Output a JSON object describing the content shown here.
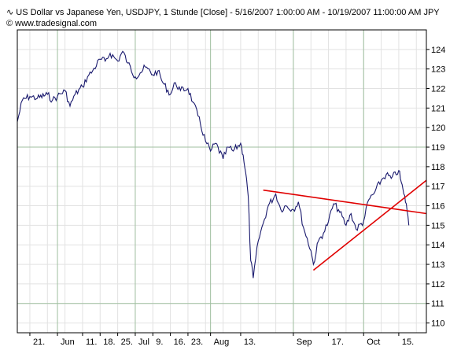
{
  "header": {
    "title_icon": "line-chart-icon",
    "title": "US Dollar vs Japanese Yen, USDJPY, 1 Stunde [Close] - 5/16/2007 1:00:00 AM - 10/19/2007 11:00:00 AM",
    "symbol": "JPY",
    "credit_icon": "copyright-icon",
    "credit": "© www.tradesignal.com"
  },
  "chart_data": {
    "type": "line",
    "title": "US Dollar vs Japanese Yen, USDJPY, 1 Stunde [Close] - 5/16/2007 1:00:00 AM - 10/19/2007 11:00:00 AM",
    "xlabel": "",
    "ylabel": "",
    "x_range": [
      "2007-05-16",
      "2007-10-26"
    ],
    "ylim": [
      109.5,
      125.0
    ],
    "y_ticks": [
      110,
      111,
      112,
      113,
      114,
      115,
      116,
      117,
      118,
      119,
      120,
      121,
      122,
      123,
      124
    ],
    "y_axis_side": "right",
    "grid": true,
    "major_grid_y": [
      111,
      119
    ],
    "major_grid_x": [
      "2007-06-01",
      "2007-07-02",
      "2007-08-01",
      "2007-09-03",
      "2007-10-01"
    ],
    "x_ticks": [
      {
        "date": "2007-05-21",
        "label": "21."
      },
      {
        "date": "2007-06-01",
        "label": "Jun"
      },
      {
        "date": "2007-06-11",
        "label": "11."
      },
      {
        "date": "2007-06-18",
        "label": "18."
      },
      {
        "date": "2007-06-25",
        "label": "25."
      },
      {
        "date": "2007-07-02",
        "label": "Jul"
      },
      {
        "date": "2007-07-09",
        "label": "9."
      },
      {
        "date": "2007-07-16",
        "label": "16."
      },
      {
        "date": "2007-07-23",
        "label": "23."
      },
      {
        "date": "2007-08-01",
        "label": "Aug"
      },
      {
        "date": "2007-08-13",
        "label": "13."
      },
      {
        "date": "2007-09-03",
        "label": "Sep"
      },
      {
        "date": "2007-09-17",
        "label": "17."
      },
      {
        "date": "2007-10-01",
        "label": "Oct"
      },
      {
        "date": "2007-10-15",
        "label": "15."
      }
    ],
    "colors": {
      "price": "#1a1a6e",
      "trendlines": "#e00000",
      "grid": "#e2e2e2",
      "major_grid": "#9fbf9f",
      "frame": "#000000"
    },
    "series": [
      {
        "values": [
          [
            "2007-05-16",
            120.3
          ],
          [
            "2007-05-18",
            121.4
          ],
          [
            "2007-05-21",
            121.6
          ],
          [
            "2007-05-24",
            121.5
          ],
          [
            "2007-05-28",
            121.7
          ],
          [
            "2007-05-30",
            121.4
          ],
          [
            "2007-06-01",
            121.6
          ],
          [
            "2007-06-04",
            121.9
          ],
          [
            "2007-06-06",
            121.1
          ],
          [
            "2007-06-08",
            121.7
          ],
          [
            "2007-06-11",
            122.1
          ],
          [
            "2007-06-13",
            122.6
          ],
          [
            "2007-06-15",
            122.9
          ],
          [
            "2007-06-18",
            123.5
          ],
          [
            "2007-06-20",
            123.4
          ],
          [
            "2007-06-22",
            123.8
          ],
          [
            "2007-06-25",
            123.4
          ],
          [
            "2007-06-27",
            123.9
          ],
          [
            "2007-06-29",
            123.3
          ],
          [
            "2007-07-02",
            122.6
          ],
          [
            "2007-07-04",
            122.8
          ],
          [
            "2007-07-06",
            123.1
          ],
          [
            "2007-07-09",
            122.7
          ],
          [
            "2007-07-11",
            122.9
          ],
          [
            "2007-07-13",
            122.3
          ],
          [
            "2007-07-16",
            121.7
          ],
          [
            "2007-07-18",
            122.3
          ],
          [
            "2007-07-20",
            121.9
          ],
          [
            "2007-07-23",
            122.0
          ],
          [
            "2007-07-25",
            121.3
          ],
          [
            "2007-07-27",
            120.6
          ],
          [
            "2007-07-30",
            119.3
          ],
          [
            "2007-08-01",
            118.8
          ],
          [
            "2007-08-03",
            119.2
          ],
          [
            "2007-08-06",
            118.4
          ],
          [
            "2007-08-08",
            119.0
          ],
          [
            "2007-08-10",
            118.8
          ],
          [
            "2007-08-13",
            119.2
          ],
          [
            "2007-08-14",
            118.6
          ],
          [
            "2007-08-15",
            117.7
          ],
          [
            "2007-08-16",
            116.5
          ],
          [
            "2007-08-17",
            113.2
          ],
          [
            "2007-08-18",
            112.3
          ],
          [
            "2007-08-20",
            114.2
          ],
          [
            "2007-08-22",
            115.1
          ],
          [
            "2007-08-24",
            116.0
          ],
          [
            "2007-08-27",
            116.6
          ],
          [
            "2007-08-29",
            115.8
          ],
          [
            "2007-08-31",
            116.0
          ],
          [
            "2007-09-03",
            115.8
          ],
          [
            "2007-09-05",
            116.2
          ],
          [
            "2007-09-07",
            114.9
          ],
          [
            "2007-09-10",
            113.7
          ],
          [
            "2007-09-11",
            113.0
          ],
          [
            "2007-09-13",
            114.2
          ],
          [
            "2007-09-15",
            114.6
          ],
          [
            "2007-09-17",
            115.2
          ],
          [
            "2007-09-19",
            116.1
          ],
          [
            "2007-09-21",
            115.8
          ],
          [
            "2007-09-24",
            115.0
          ],
          [
            "2007-09-26",
            115.6
          ],
          [
            "2007-09-28",
            114.8
          ],
          [
            "2007-10-01",
            115.2
          ],
          [
            "2007-10-03",
            116.3
          ],
          [
            "2007-10-05",
            116.6
          ],
          [
            "2007-10-08",
            117.3
          ],
          [
            "2007-10-10",
            117.6
          ],
          [
            "2007-10-12",
            117.4
          ],
          [
            "2007-10-15",
            117.8
          ],
          [
            "2007-10-16",
            117.2
          ],
          [
            "2007-10-17",
            116.6
          ],
          [
            "2007-10-18",
            116.1
          ],
          [
            "2007-10-19",
            115.0
          ]
        ]
      }
    ],
    "trendlines": [
      {
        "points": [
          [
            "2007-08-22",
            116.8
          ],
          [
            "2007-10-26",
            115.6
          ]
        ]
      },
      {
        "points": [
          [
            "2007-09-11",
            112.7
          ],
          [
            "2007-10-26",
            117.3
          ]
        ]
      }
    ]
  }
}
